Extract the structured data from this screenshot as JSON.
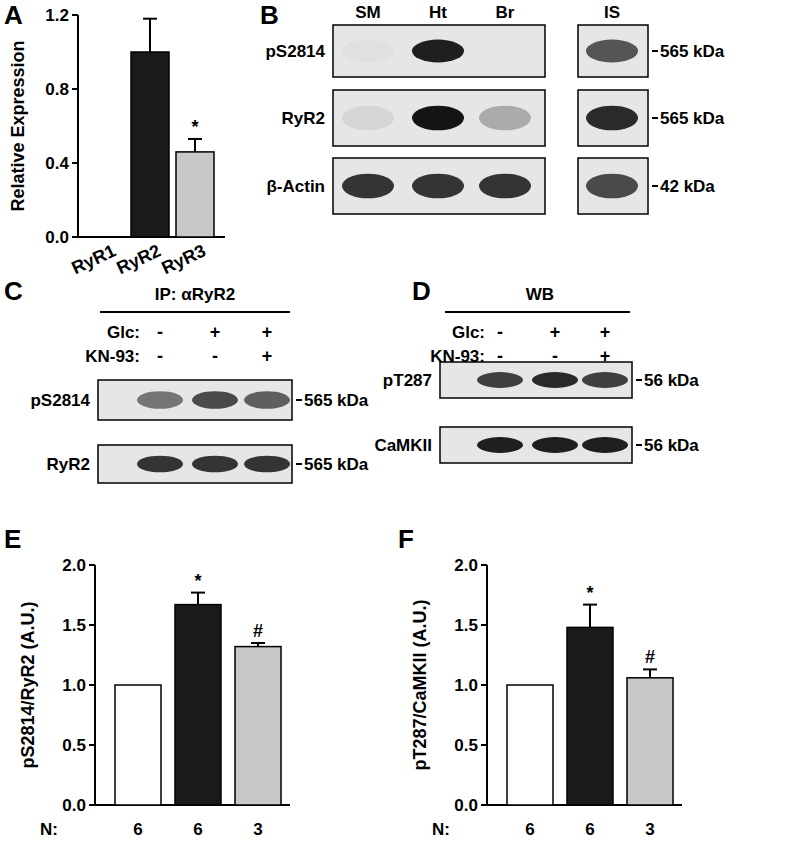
{
  "chart_data": [
    {
      "type": "bar",
      "title": "A",
      "ylabel": "Relative Expression",
      "categories": [
        "RyR1",
        "RyR2",
        "RyR3"
      ],
      "values": [
        0,
        1.0,
        0.46
      ],
      "errors": [
        0,
        0.18,
        0.07
      ],
      "significance": [
        null,
        null,
        "*"
      ],
      "colors": [
        "#ffffff",
        "#1a1a1a",
        "#c8c8c8"
      ],
      "ylim": [
        0,
        1.2
      ],
      "yticks": [
        {
          "value": 0,
          "label": "0.0"
        },
        0.4,
        0.8,
        1.2
      ],
      "grid": false
    },
    {
      "type": "bar",
      "title": "E",
      "ylabel": "pS2814/RyR2 (A.U.)",
      "xlabel": "N:",
      "categories": [
        "6",
        "6",
        "3"
      ],
      "values": [
        1.0,
        1.67,
        1.32
      ],
      "errors": [
        0,
        0.1,
        0.03
      ],
      "significance": [
        null,
        "*",
        "#"
      ],
      "colors": [
        "#ffffff",
        "#1a1a1a",
        "#c8c8c8"
      ],
      "ylim": [
        0,
        2.0
      ],
      "yticks": [
        {
          "value": 0,
          "label": "0.0"
        },
        0.5,
        {
          "value": 1,
          "label": "1.0"
        },
        1.5,
        {
          "value": 2,
          "label": "2.0"
        }
      ],
      "grid": false
    },
    {
      "type": "bar",
      "title": "F",
      "ylabel": "pT287/CaMKII (A.U.)",
      "xlabel": "N:",
      "categories": [
        "6",
        "6",
        "3"
      ],
      "values": [
        1.0,
        1.48,
        1.06
      ],
      "errors": [
        0,
        0.19,
        0.07
      ],
      "significance": [
        null,
        "*",
        "#"
      ],
      "colors": [
        "#ffffff",
        "#1a1a1a",
        "#c8c8c8"
      ],
      "ylim": [
        0,
        2.0
      ],
      "yticks": [
        {
          "value": 0,
          "label": "0.0"
        },
        0.5,
        {
          "value": 1,
          "label": "1.0"
        },
        1.5,
        {
          "value": 2,
          "label": "2.0"
        }
      ],
      "grid": false
    }
  ],
  "blots": [
    {
      "title": "B",
      "columns": [
        "SM",
        "Ht",
        "Br",
        "IS"
      ],
      "rows": [
        {
          "label": "pS2814",
          "size": "565 kDa",
          "bands": [
            0.05,
            0.95,
            0.03,
            0.7
          ]
        },
        {
          "label": "RyR2",
          "size": "565 kDa",
          "bands": [
            0.1,
            1.0,
            0.3,
            0.9
          ]
        },
        {
          "label": "β-Actin",
          "size": "42 kDa",
          "bands": [
            0.85,
            0.85,
            0.85,
            0.75
          ]
        }
      ]
    },
    {
      "title": "C",
      "header": "IP: αRyR2",
      "conditions": [
        {
          "label": "Glc:",
          "values": [
            "-",
            "+",
            "+"
          ]
        },
        {
          "label": "KN-93:",
          "values": [
            "-",
            "-",
            "+"
          ]
        }
      ],
      "rows": [
        {
          "label": "pS2814",
          "size": "565 kDa",
          "bands": [
            0.55,
            0.75,
            0.65
          ]
        },
        {
          "label": "RyR2",
          "size": "565 kDa",
          "bands": [
            0.85,
            0.85,
            0.85
          ]
        }
      ]
    },
    {
      "title": "D",
      "header": "WB",
      "conditions": [
        {
          "label": "Glc:",
          "values": [
            "-",
            "+",
            "+"
          ]
        },
        {
          "label": "KN-93:",
          "values": [
            "-",
            "-",
            "+"
          ]
        }
      ],
      "rows": [
        {
          "label": "pT287",
          "size": "56 kDa",
          "bands": [
            0.8,
            0.9,
            0.8
          ]
        },
        {
          "label": "CaMKII",
          "size": "56 kDa",
          "bands": [
            0.95,
            0.95,
            0.95
          ]
        }
      ]
    }
  ]
}
